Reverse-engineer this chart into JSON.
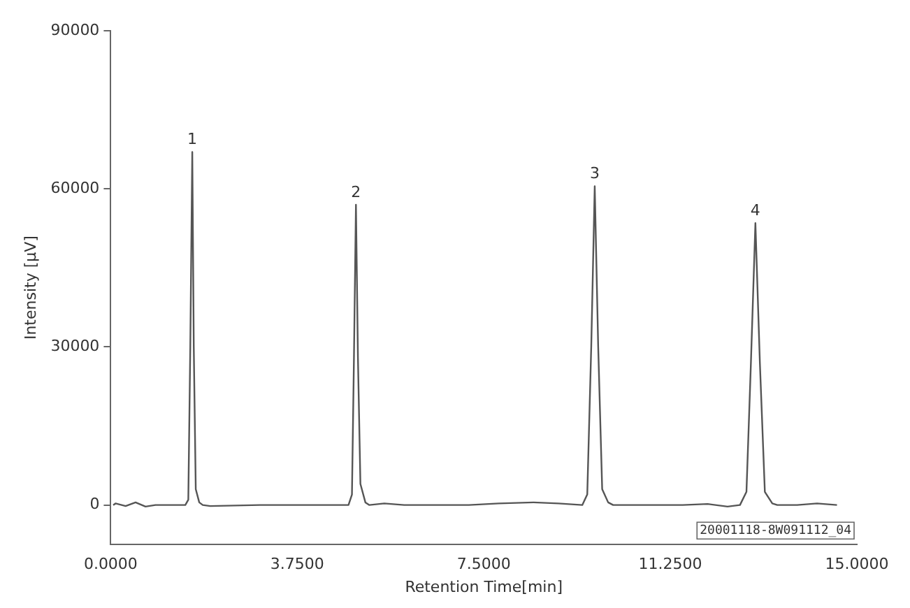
{
  "chart_data": {
    "type": "line",
    "xlabel": "Retention Time[min]",
    "ylabel": "Intensity [μV]",
    "x": [
      0.05,
      0.1,
      0.3,
      0.5,
      0.7,
      0.9,
      1.2,
      1.5,
      1.56,
      1.6,
      1.64,
      1.67,
      1.71,
      1.78,
      1.85,
      2.0,
      3.0,
      4.0,
      4.78,
      4.85,
      4.89,
      4.93,
      4.97,
      5.02,
      5.12,
      5.2,
      5.5,
      5.9,
      6.5,
      7.2,
      7.8,
      8.5,
      9.0,
      9.48,
      9.58,
      9.66,
      9.73,
      9.8,
      9.88,
      10.0,
      10.1,
      10.5,
      11.5,
      12.0,
      12.4,
      12.65,
      12.78,
      12.87,
      12.96,
      13.05,
      13.15,
      13.3,
      13.4,
      13.8,
      14.2,
      14.6
    ],
    "series": [
      {
        "color": "#555555",
        "values": [
          0,
          300,
          -200,
          500,
          -300,
          0,
          0,
          0,
          1000,
          30000,
          67000,
          30000,
          3000,
          500,
          0,
          -200,
          0,
          0,
          0,
          2000,
          28000,
          57000,
          28000,
          4000,
          500,
          0,
          300,
          0,
          0,
          0,
          300,
          500,
          300,
          0,
          2000,
          30000,
          60500,
          30000,
          3000,
          500,
          0,
          0,
          0,
          200,
          -300,
          0,
          2500,
          27000,
          53500,
          27000,
          2500,
          300,
          0,
          0,
          300,
          0
        ]
      }
    ],
    "xlim": [
      0,
      15
    ],
    "xticks": [
      {
        "value": 0,
        "label": "0.0000"
      },
      {
        "value": 3.75,
        "label": "3.7500"
      },
      {
        "value": 7.5,
        "label": "7.5000"
      },
      {
        "value": 11.25,
        "label": "11.2500"
      },
      {
        "value": 15,
        "label": "15.0000"
      }
    ],
    "ylim": [
      -7500,
      90000
    ],
    "yticks": [
      0,
      30000,
      60000,
      90000
    ],
    "grid": false,
    "legend": false,
    "marker": "none",
    "line_style": "solid",
    "annotations": [
      {
        "text": "1",
        "x": 1.64,
        "y": 67000
      },
      {
        "text": "2",
        "x": 4.93,
        "y": 57000
      },
      {
        "text": "3",
        "x": 9.73,
        "y": 60500
      },
      {
        "text": "4",
        "x": 12.96,
        "y": 53500
      },
      "20001118-8W091112_04"
    ]
  }
}
